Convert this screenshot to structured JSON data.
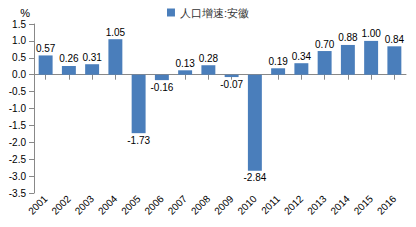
{
  "chart_data": {
    "type": "bar",
    "title": "人口增速:安徽",
    "y_label": "%",
    "categories": [
      "2001",
      "2002",
      "2003",
      "2004",
      "2005",
      "2006",
      "2007",
      "2008",
      "2009",
      "2010",
      "2011",
      "2012",
      "2013",
      "2014",
      "2015",
      "2016"
    ],
    "values": [
      0.57,
      0.26,
      0.31,
      1.05,
      -1.73,
      -0.16,
      0.13,
      0.28,
      -0.07,
      -2.84,
      0.19,
      0.34,
      0.7,
      0.88,
      1.0,
      0.84
    ],
    "value_labels": [
      "0.57",
      "0.26",
      "0.31",
      "1.05",
      "-1.73",
      "-0.16",
      "0.13",
      "0.28",
      "-0.07",
      "-2.84",
      "0.19",
      "0.34",
      "0.70",
      "0.88",
      "1.00",
      "0.84"
    ],
    "color": "#4a7ebb",
    "ylim": [
      -3.5,
      1.5
    ],
    "yticks": [
      -3.5,
      {
        "value": -3,
        "label": "-3.0"
      },
      -2.5,
      {
        "value": -2,
        "label": "-2.0"
      },
      -1.5,
      {
        "value": -1,
        "label": "-1.0"
      },
      -0.5,
      {
        "value": 0,
        "label": "0.0"
      },
      0.5,
      {
        "value": 1,
        "label": "1.0"
      },
      1.5
    ],
    "grid": false,
    "legend": "top",
    "data_labels": true
  }
}
